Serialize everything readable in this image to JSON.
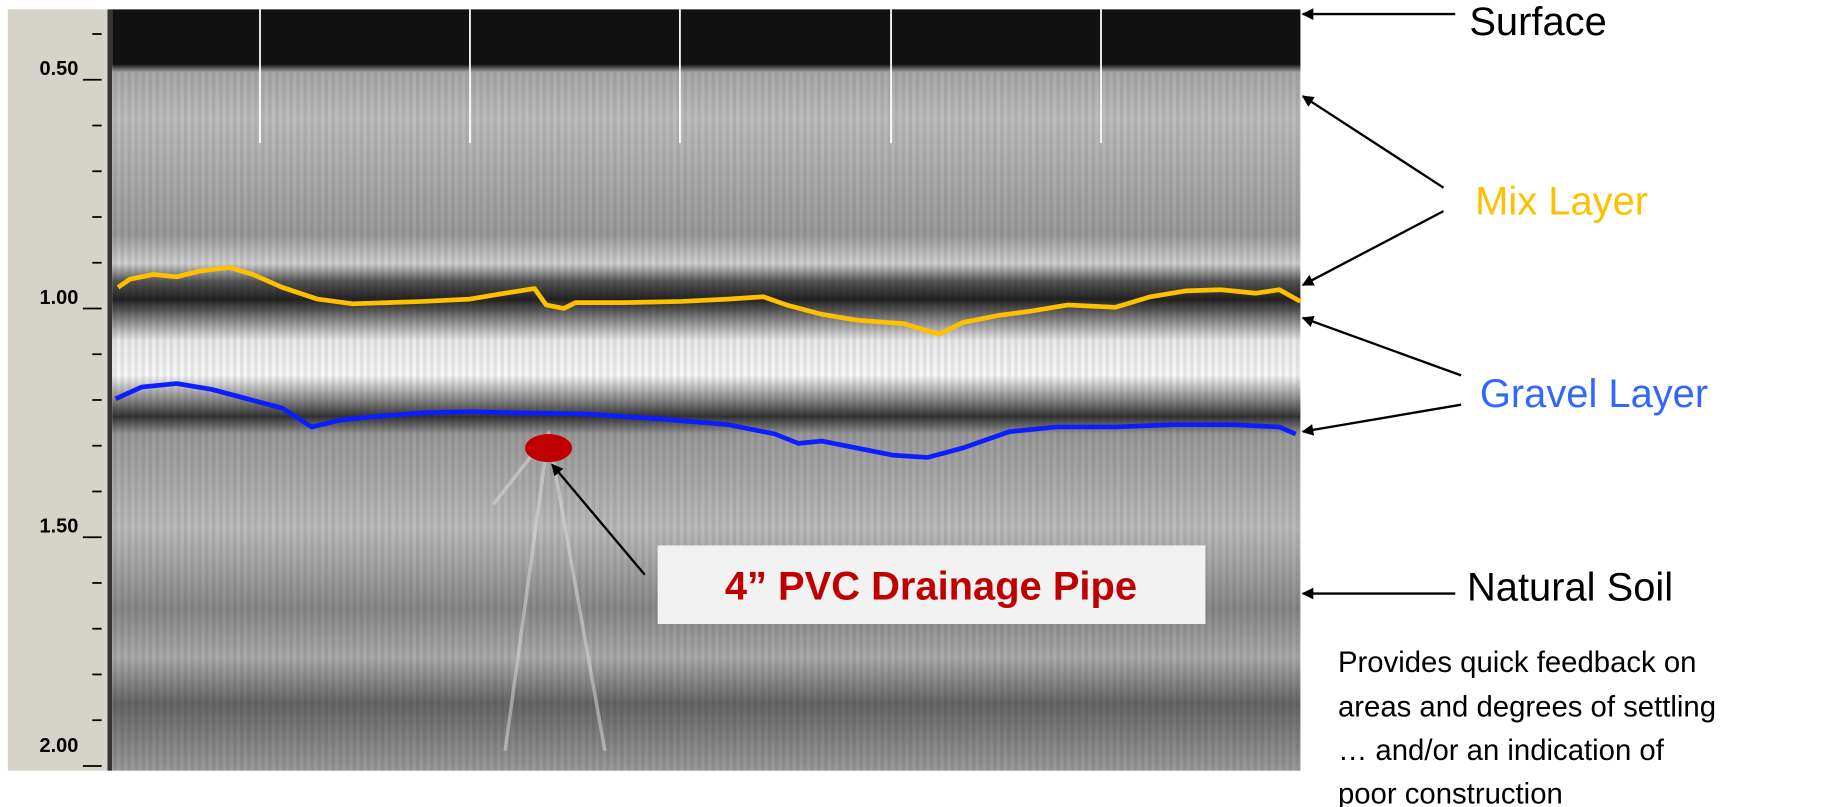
{
  "depth_axis": {
    "labels": [
      "0.50",
      "1.00",
      "1.50",
      "2.00"
    ]
  },
  "annotations": {
    "surface": "Surface",
    "mix_layer": "Mix Layer",
    "gravel_layer": "Gravel Layer",
    "natural_soil": "Natural Soil",
    "pipe": "4” PVC Drainage Pipe"
  },
  "note": {
    "lines": [
      "Provides  quick feedback on",
      "areas and degrees of settling",
      "… and/or an indication of",
      "poor construction"
    ]
  }
}
